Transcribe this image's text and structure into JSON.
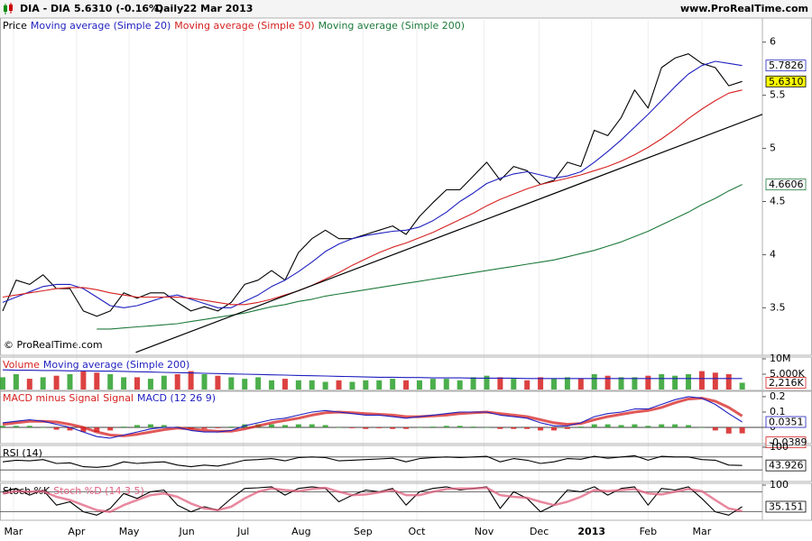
{
  "header": {
    "symbol": "DIA - DIA",
    "quote": "5.6310 (-0.16%)",
    "period": "Daily",
    "date": "22 Mar 2013",
    "site": "www.ProRealTime.com"
  },
  "chart_data": [
    {
      "type": "line",
      "annotation": "© ProRealTime.com",
      "x": [
        0,
        1,
        2,
        3,
        4,
        5,
        6,
        7,
        8,
        9,
        10,
        11,
        12,
        13,
        14,
        15,
        16,
        17,
        18,
        19,
        20,
        21,
        22,
        23,
        24,
        25,
        26,
        27,
        28,
        29,
        30,
        31,
        32,
        33,
        34,
        35,
        36,
        37,
        38,
        39,
        40,
        41,
        42,
        43,
        44,
        45,
        46,
        47,
        48,
        49,
        50,
        51,
        52,
        53,
        54,
        55
      ],
      "xlim": [
        -0.2,
        56.5
      ],
      "xticks": [
        {
          "value": 0.8,
          "label": "Mar"
        },
        {
          "value": 5.5,
          "label": "Apr"
        },
        {
          "value": 9.4,
          "label": "May"
        },
        {
          "value": 13.7,
          "label": "Jun"
        },
        {
          "value": 17.9,
          "label": "Jul"
        },
        {
          "value": 22.2,
          "label": "Aug"
        },
        {
          "value": 26.8,
          "label": "Sep"
        },
        {
          "value": 30.8,
          "label": "Oct"
        },
        {
          "value": 35.8,
          "label": "Nov"
        },
        {
          "value": 39.9,
          "label": "Dec"
        },
        {
          "value": 43.8,
          "label": "2013"
        },
        {
          "value": 48,
          "label": "Feb"
        },
        {
          "value": 52,
          "label": "Mar"
        }
      ],
      "ylim": [
        3.07,
        6.21
      ],
      "yticks": [
        3.5,
        4,
        4.5,
        5,
        5.5,
        6
      ],
      "trend_line": {
        "x": [
          9.9,
          56.5
        ],
        "values": [
          3.08,
          5.32
        ],
        "color": "#000000"
      },
      "series": [
        {
          "name": "Price",
          "color": "#000000",
          "label_color": "#ffff00",
          "last_label": "5.6310",
          "values": [
            3.47,
            3.76,
            3.72,
            3.81,
            3.68,
            3.68,
            3.47,
            3.42,
            3.47,
            3.64,
            3.59,
            3.64,
            3.64,
            3.55,
            3.47,
            3.51,
            3.47,
            3.55,
            3.72,
            3.76,
            3.85,
            3.76,
            4.02,
            4.15,
            4.23,
            4.15,
            4.15,
            4.19,
            4.23,
            4.27,
            4.19,
            4.36,
            4.49,
            4.61,
            4.61,
            4.74,
            4.87,
            4.7,
            4.83,
            4.79,
            4.66,
            4.7,
            4.87,
            4.83,
            5.17,
            5.12,
            5.29,
            5.55,
            5.38,
            5.76,
            5.85,
            5.89,
            5.8,
            5.76,
            5.59,
            5.63
          ]
        },
        {
          "name": "Moving average (Simple 20)",
          "color": "#1f1fbf",
          "label_color": "#ffffff",
          "last_label": "5.7826",
          "values": [
            3.55,
            3.6,
            3.65,
            3.7,
            3.72,
            3.72,
            3.68,
            3.6,
            3.52,
            3.5,
            3.52,
            3.56,
            3.6,
            3.62,
            3.58,
            3.54,
            3.5,
            3.5,
            3.56,
            3.62,
            3.7,
            3.76,
            3.84,
            3.93,
            4.03,
            4.1,
            4.15,
            4.18,
            4.2,
            4.22,
            4.23,
            4.26,
            4.32,
            4.4,
            4.5,
            4.58,
            4.67,
            4.72,
            4.76,
            4.78,
            4.75,
            4.72,
            4.74,
            4.78,
            4.87,
            4.97,
            5.08,
            5.2,
            5.32,
            5.45,
            5.58,
            5.7,
            5.78,
            5.82,
            5.8,
            5.78
          ]
        },
        {
          "name": "Moving average (Simple 50)",
          "color": "#d62020",
          "values": [
            3.6,
            3.62,
            3.64,
            3.66,
            3.68,
            3.69,
            3.69,
            3.67,
            3.64,
            3.62,
            3.6,
            3.6,
            3.6,
            3.6,
            3.59,
            3.57,
            3.55,
            3.53,
            3.53,
            3.55,
            3.58,
            3.62,
            3.66,
            3.71,
            3.77,
            3.83,
            3.9,
            3.96,
            4.02,
            4.07,
            4.11,
            4.16,
            4.21,
            4.27,
            4.33,
            4.39,
            4.46,
            4.52,
            4.57,
            4.62,
            4.66,
            4.69,
            4.72,
            4.75,
            4.79,
            4.83,
            4.88,
            4.94,
            5.01,
            5.09,
            5.18,
            5.28,
            5.37,
            5.45,
            5.52,
            5.55
          ]
        },
        {
          "name": "Moving average (Simple 200)",
          "color": "#1e7a3c",
          "label_color": "#ffffff",
          "last_label": "4.6606",
          "values": [
            null,
            null,
            null,
            null,
            null,
            null,
            null,
            3.3,
            3.3,
            3.31,
            3.32,
            3.33,
            3.34,
            3.35,
            3.37,
            3.39,
            3.41,
            3.43,
            3.45,
            3.48,
            3.51,
            3.53,
            3.56,
            3.58,
            3.61,
            3.63,
            3.65,
            3.67,
            3.69,
            3.71,
            3.73,
            3.75,
            3.77,
            3.79,
            3.81,
            3.83,
            3.85,
            3.87,
            3.89,
            3.91,
            3.93,
            3.95,
            3.98,
            4.01,
            4.04,
            4.08,
            4.12,
            4.17,
            4.22,
            4.28,
            4.34,
            4.4,
            4.47,
            4.53,
            4.6,
            4.66
          ]
        }
      ]
    },
    {
      "type": "bar",
      "ylim": [
        0,
        10
      ],
      "yticks": [
        {
          "value": 10,
          "label": "10M"
        },
        {
          "value": 5,
          "label": "5.000K"
        }
      ],
      "series": [
        {
          "name": "Volume",
          "type": "bar",
          "color": "#d62020",
          "up_color": "#2ca02c",
          "label_color": "#ffffff",
          "last_label": "2,216K",
          "values": [
            4,
            5,
            3.5,
            4,
            4.5,
            5,
            6,
            5.5,
            5,
            4,
            4,
            3.5,
            4.5,
            5,
            6,
            5,
            4.5,
            4,
            3.5,
            4,
            3,
            3.5,
            3,
            3,
            2.5,
            3,
            2.5,
            3,
            3,
            3.5,
            3,
            3,
            3.5,
            3.5,
            3,
            4,
            4.5,
            4,
            3.5,
            3,
            4,
            3.5,
            4,
            3.5,
            5,
            4.5,
            4,
            4,
            4.5,
            5,
            4.5,
            5,
            6,
            5.5,
            5,
            2.216
          ]
        },
        {
          "name": "Moving average (Simple 200)",
          "type": "line",
          "color": "#1f1fbf",
          "values": [
            6.4,
            6.3,
            6.3,
            6.2,
            6.2,
            6.1,
            6.1,
            6.0,
            6.0,
            5.9,
            5.8,
            5.7,
            5.6,
            5.5,
            5.4,
            5.3,
            5.2,
            5.1,
            5.0,
            4.9,
            4.8,
            4.7,
            4.6,
            4.5,
            4.4,
            4.3,
            4.2,
            4.1,
            4.0,
            4.0,
            3.9,
            3.9,
            3.8,
            3.8,
            3.8,
            3.7,
            3.7,
            3.7,
            3.7,
            3.6,
            3.6,
            3.6,
            3.6,
            3.6,
            3.6,
            3.6,
            3.6,
            3.6,
            3.6,
            3.6,
            3.6,
            3.6,
            3.6,
            3.6,
            3.6,
            3.6
          ]
        }
      ]
    },
    {
      "type": "macd",
      "ylim": [
        -0.094,
        0.229
      ],
      "yticks": [
        0,
        0.1,
        0.2
      ],
      "zero_line": true,
      "series": [
        {
          "name": "MACD minus Signal",
          "type": "bar",
          "color": "#d62020",
          "up_color": "#2ca02c",
          "label_color": "#ffffff",
          "last_label": "-0.0389",
          "values": [
            0.01,
            0.01,
            0.01,
            0,
            -0.015,
            -0.02,
            -0.03,
            -0.03,
            -0.02,
            0.005,
            0.015,
            0.02,
            0.015,
            0.005,
            -0.01,
            -0.01,
            -0.005,
            0.005,
            0.02,
            0.02,
            0.02,
            0.015,
            0.02,
            0.02,
            0.015,
            0,
            -0.005,
            -0.01,
            -0.005,
            -0.01,
            -0.01,
            0,
            0.005,
            0.01,
            0.01,
            0.005,
            0,
            -0.01,
            -0.01,
            -0.01,
            -0.02,
            -0.02,
            -0.01,
            0.005,
            0.02,
            0.02,
            0.015,
            0.02,
            0.01,
            0.02,
            0.02,
            0.015,
            0,
            -0.02,
            -0.04,
            -0.0389
          ]
        },
        {
          "name": "Signal",
          "type": "line",
          "color": "#d62020",
          "width": 3,
          "values": [
            0.02,
            0.03,
            0.04,
            0.04,
            0.035,
            0.02,
            0.0,
            -0.03,
            -0.05,
            -0.055,
            -0.045,
            -0.03,
            -0.015,
            -0.005,
            -0.01,
            -0.02,
            -0.025,
            -0.025,
            -0.01,
            0.01,
            0.03,
            0.045,
            0.06,
            0.08,
            0.095,
            0.1,
            0.095,
            0.09,
            0.085,
            0.08,
            0.07,
            0.07,
            0.075,
            0.08,
            0.09,
            0.095,
            0.1,
            0.09,
            0.08,
            0.07,
            0.05,
            0.03,
            0.02,
            0.025,
            0.05,
            0.07,
            0.085,
            0.1,
            0.11,
            0.13,
            0.16,
            0.185,
            0.19,
            0.17,
            0.13,
            0.074
          ]
        },
        {
          "name": "MACD (12 26 9)",
          "type": "line",
          "color": "#1f1fbf",
          "label_color": "#ffffff",
          "last_label": "0.0351",
          "values": [
            0.03,
            0.04,
            0.05,
            0.04,
            0.02,
            0.0,
            -0.03,
            -0.06,
            -0.07,
            -0.05,
            -0.03,
            -0.01,
            0.0,
            0.0,
            -0.02,
            -0.03,
            -0.03,
            -0.02,
            0.01,
            0.03,
            0.05,
            0.06,
            0.08,
            0.1,
            0.11,
            0.1,
            0.09,
            0.08,
            0.08,
            0.07,
            0.06,
            0.07,
            0.08,
            0.09,
            0.1,
            0.1,
            0.1,
            0.08,
            0.07,
            0.06,
            0.03,
            0.01,
            0.01,
            0.03,
            0.07,
            0.09,
            0.1,
            0.12,
            0.12,
            0.15,
            0.18,
            0.2,
            0.19,
            0.15,
            0.09,
            0.0351
          ]
        }
      ]
    },
    {
      "type": "line",
      "ylim": [
        0,
        100
      ],
      "yticks": [
        100
      ],
      "levels": [
        70,
        30
      ],
      "series": [
        {
          "name": "RSI (14)",
          "type": "line",
          "color": "#000000",
          "label_color": "#ffffff",
          "last_label": "43.926",
          "values": [
            55,
            60,
            58,
            62,
            50,
            52,
            40,
            38,
            42,
            55,
            50,
            53,
            55,
            45,
            40,
            45,
            42,
            50,
            60,
            62,
            65,
            58,
            68,
            70,
            68,
            58,
            60,
            62,
            64,
            66,
            55,
            65,
            68,
            70,
            68,
            70,
            72,
            55,
            65,
            60,
            50,
            55,
            65,
            63,
            72,
            66,
            70,
            74,
            60,
            72,
            70,
            70,
            62,
            60,
            45,
            43.926
          ]
        }
      ]
    },
    {
      "type": "line",
      "ylim": [
        0,
        100
      ],
      "yticks": [
        100
      ],
      "levels": [
        80,
        20
      ],
      "series": [
        {
          "name": "Stoch %K",
          "type": "line",
          "color": "#000000",
          "label_color": "#ffffff",
          "last_label": "35.151",
          "values": [
            80,
            90,
            70,
            85,
            40,
            50,
            20,
            10,
            30,
            75,
            60,
            80,
            85,
            40,
            20,
            35,
            25,
            60,
            90,
            92,
            95,
            70,
            90,
            95,
            90,
            50,
            70,
            85,
            80,
            90,
            40,
            80,
            90,
            95,
            85,
            90,
            95,
            30,
            80,
            60,
            20,
            40,
            85,
            80,
            95,
            70,
            90,
            95,
            40,
            90,
            85,
            95,
            60,
            20,
            10,
            35.151
          ]
        },
        {
          "name": "Stoch %D (14 3 5)",
          "type": "line",
          "color": "#e0607e",
          "width": 2.5,
          "values": [
            75,
            82,
            80,
            82,
            65,
            55,
            40,
            25,
            20,
            40,
            55,
            70,
            75,
            65,
            45,
            30,
            25,
            35,
            60,
            80,
            90,
            85,
            82,
            88,
            92,
            80,
            70,
            72,
            78,
            85,
            70,
            70,
            80,
            88,
            90,
            90,
            92,
            70,
            65,
            62,
            50,
            40,
            50,
            65,
            85,
            82,
            85,
            88,
            75,
            72,
            80,
            88,
            82,
            55,
            30,
            22
          ]
        }
      ]
    }
  ]
}
